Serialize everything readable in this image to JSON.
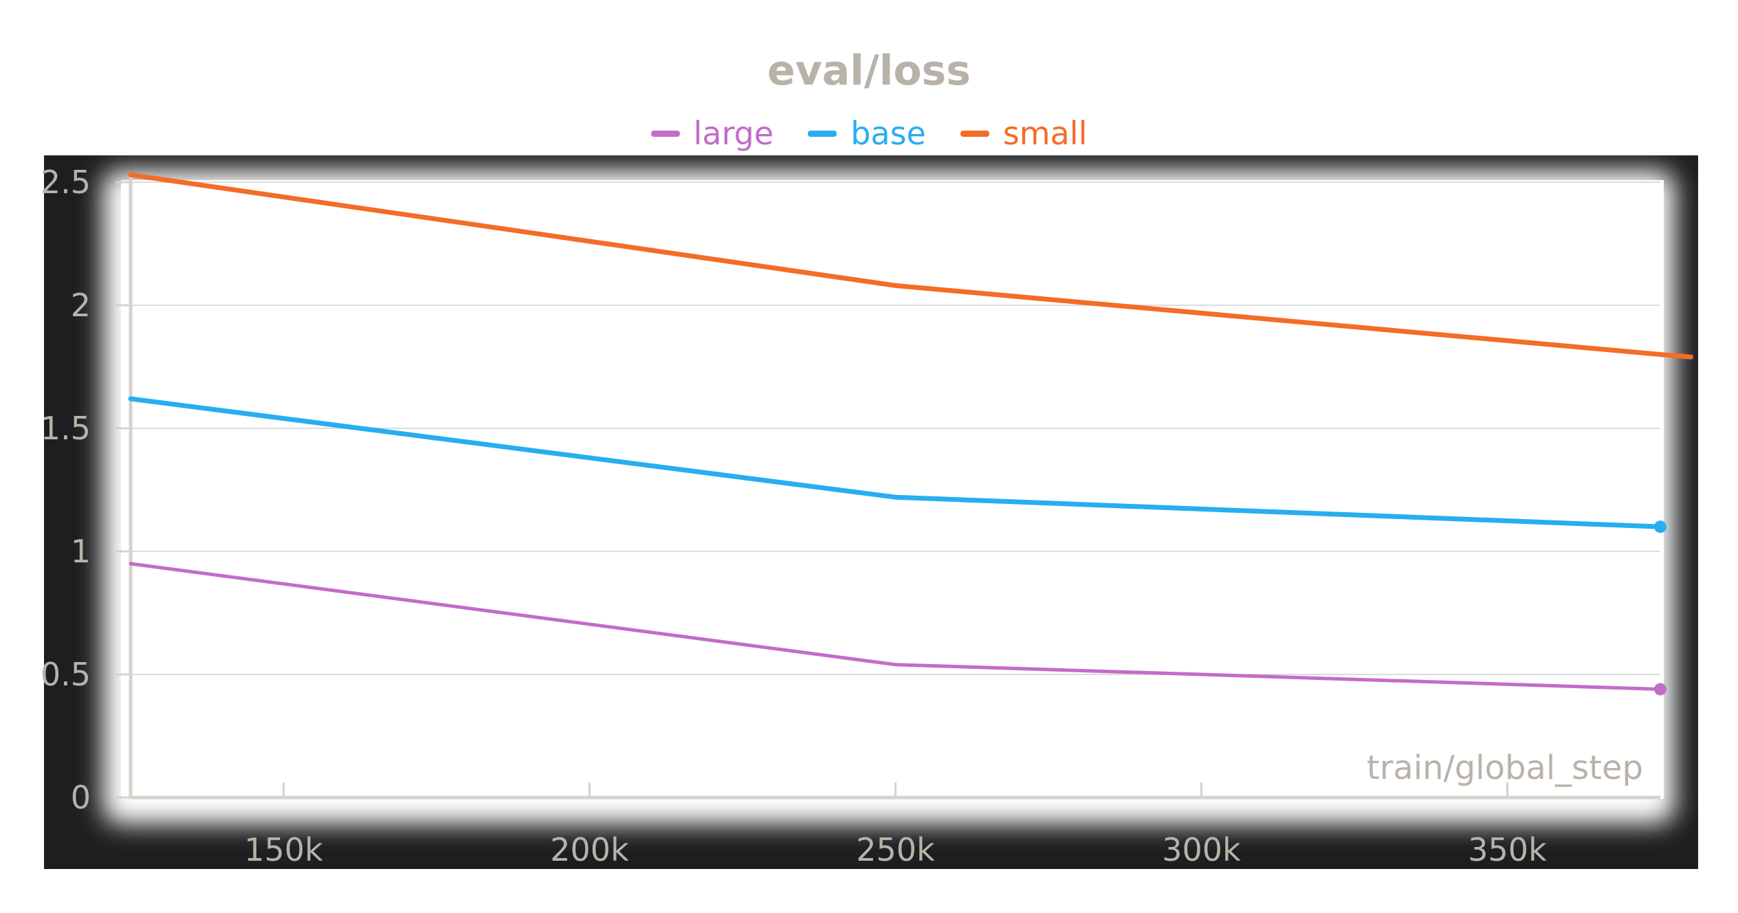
{
  "colors": {
    "large": "#c26cc9",
    "base": "#27aeef",
    "small": "#f46c26",
    "text": "#b9b2a8",
    "frame": "#1d1e20"
  },
  "chart_data": {
    "type": "line",
    "title": "eval/loss",
    "xlabel": "train/global_step",
    "ylabel": "",
    "xlim": [
      125000,
      375000
    ],
    "ylim": [
      0,
      2.5
    ],
    "xticks": [
      150000,
      200000,
      250000,
      300000,
      350000
    ],
    "xtick_labels": [
      "150k",
      "200k",
      "250k",
      "300k",
      "350k"
    ],
    "yticks": [
      0,
      0.5,
      1,
      1.5,
      2,
      2.5
    ],
    "ytick_labels": [
      "0",
      "0.5",
      "1",
      "1.5",
      "2",
      "2.5"
    ],
    "grid": true,
    "legend": "top-center",
    "series": [
      {
        "name": "large",
        "color": "#c26cc9",
        "x": [
          125000,
          250000,
          375000
        ],
        "y": [
          0.95,
          0.54,
          0.44
        ]
      },
      {
        "name": "base",
        "color": "#27aeef",
        "x": [
          125000,
          250000,
          375000
        ],
        "y": [
          1.62,
          1.22,
          1.1
        ]
      },
      {
        "name": "small",
        "color": "#f46c26",
        "x": [
          125000,
          250000,
          375000,
          380000
        ],
        "y": [
          2.53,
          2.08,
          1.8,
          1.79
        ]
      }
    ]
  }
}
